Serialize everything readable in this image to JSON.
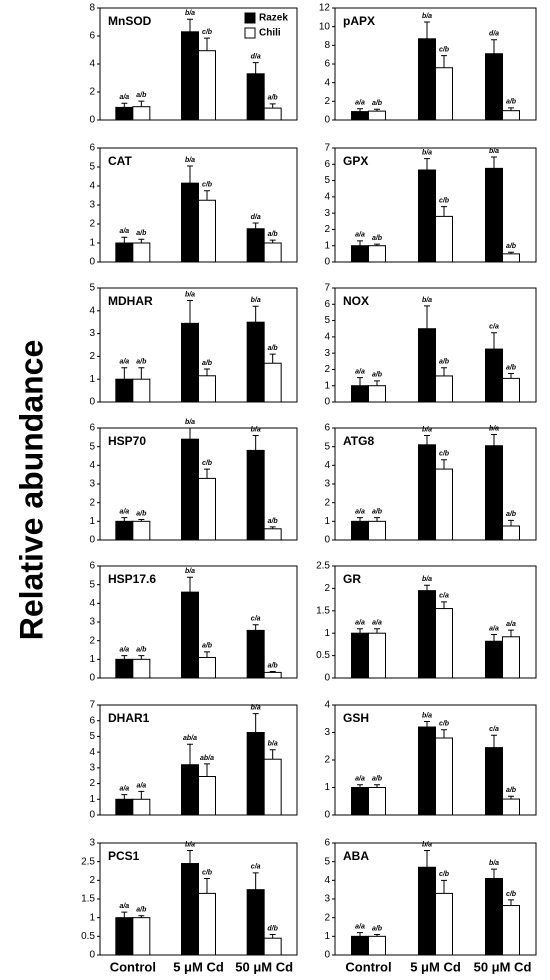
{
  "y_label": "Relative abundance",
  "chart_data": [
    {
      "type": "bar",
      "title": "MnSOD",
      "categories": [
        null,
        null,
        null
      ],
      "ylim": [
        0,
        8
      ],
      "yticks": [
        0,
        2,
        4,
        6,
        8
      ],
      "legend": "upper right",
      "series": [
        {
          "name": "Razek",
          "color": "#000000",
          "values": [
            0.9,
            6.3,
            3.3
          ],
          "errors": [
            0.3,
            0.9,
            0.8
          ],
          "labels": [
            "a/a",
            "b/a",
            "d/a"
          ]
        },
        {
          "name": "Chili",
          "color": "#ffffff",
          "values": [
            0.95,
            4.95,
            0.85
          ],
          "errors": [
            0.4,
            0.9,
            0.3
          ],
          "labels": [
            "a/b",
            "c/b",
            "a/b"
          ]
        }
      ]
    },
    {
      "type": "bar",
      "title": "pAPX",
      "categories": [
        null,
        null,
        null
      ],
      "ylim": [
        0,
        12
      ],
      "yticks": [
        0,
        2,
        4,
        6,
        8,
        10,
        12
      ],
      "series": [
        {
          "color": "#000000",
          "values": [
            0.9,
            8.7,
            7.1
          ],
          "errors": [
            0.3,
            1.8,
            1.5
          ],
          "labels": [
            "a/a",
            "b/a",
            "d/a"
          ]
        },
        {
          "color": "#ffffff",
          "values": [
            0.95,
            5.6,
            1.0
          ],
          "errors": [
            0.2,
            1.3,
            0.3
          ],
          "labels": [
            "a/b",
            "c/b",
            "a/b"
          ]
        }
      ]
    },
    {
      "type": "bar",
      "title": "CAT",
      "categories": [
        null,
        null,
        null
      ],
      "ylim": [
        0,
        6
      ],
      "yticks": [
        0,
        1,
        2,
        3,
        4,
        5,
        6
      ],
      "series": [
        {
          "color": "#000000",
          "values": [
            1.0,
            4.15,
            1.75
          ],
          "errors": [
            0.3,
            0.9,
            0.3
          ],
          "labels": [
            "a/a",
            "b/a",
            "d/a"
          ]
        },
        {
          "color": "#ffffff",
          "values": [
            1.0,
            3.25,
            1.0
          ],
          "errors": [
            0.2,
            0.5,
            0.15
          ],
          "labels": [
            "a/b",
            "c/b",
            "a/b"
          ]
        }
      ]
    },
    {
      "type": "bar",
      "title": "GPX",
      "categories": [
        null,
        null,
        null
      ],
      "ylim": [
        0,
        7
      ],
      "yticks": [
        0,
        1,
        2,
        3,
        4,
        5,
        6,
        7
      ],
      "series": [
        {
          "color": "#000000",
          "values": [
            1.0,
            5.65,
            5.75
          ],
          "errors": [
            0.3,
            0.7,
            0.7
          ],
          "labels": [
            "a/a",
            "b/a",
            "b/a"
          ]
        },
        {
          "color": "#ffffff",
          "values": [
            1.0,
            2.8,
            0.5
          ],
          "errors": [
            0.1,
            0.6,
            0.1
          ],
          "labels": [
            "a/b",
            "c/b",
            "a/b"
          ]
        }
      ]
    },
    {
      "type": "bar",
      "title": "MDHAR",
      "categories": [
        null,
        null,
        null
      ],
      "ylim": [
        0,
        5
      ],
      "yticks": [
        0,
        1,
        2,
        3,
        4,
        5
      ],
      "series": [
        {
          "color": "#000000",
          "values": [
            1.0,
            3.45,
            3.5
          ],
          "errors": [
            0.5,
            1.0,
            0.7
          ],
          "labels": [
            "a/a",
            "b/a",
            "b/a"
          ]
        },
        {
          "color": "#ffffff",
          "values": [
            1.0,
            1.15,
            1.7
          ],
          "errors": [
            0.5,
            0.3,
            0.4
          ],
          "labels": [
            "a/b",
            "a/b",
            "a/b"
          ]
        }
      ]
    },
    {
      "type": "bar",
      "title": "NOX",
      "categories": [
        null,
        null,
        null
      ],
      "ylim": [
        0,
        7
      ],
      "yticks": [
        0,
        1,
        2,
        3,
        4,
        5,
        6,
        7
      ],
      "series": [
        {
          "color": "#000000",
          "values": [
            1.0,
            4.5,
            3.25
          ],
          "errors": [
            0.5,
            1.4,
            1.0
          ],
          "labels": [
            "a/a",
            "b/a",
            "c/a"
          ]
        },
        {
          "color": "#ffffff",
          "values": [
            1.0,
            1.6,
            1.45
          ],
          "errors": [
            0.3,
            0.5,
            0.3
          ],
          "labels": [
            "a/b",
            "a/b",
            "a/b"
          ]
        }
      ]
    },
    {
      "type": "bar",
      "title": "HSP70",
      "categories": [
        null,
        null,
        null
      ],
      "ylim": [
        0,
        6
      ],
      "yticks": [
        0,
        1,
        2,
        3,
        4,
        5,
        6
      ],
      "series": [
        {
          "color": "#000000",
          "values": [
            1.0,
            5.4,
            4.8
          ],
          "errors": [
            0.2,
            0.6,
            0.8
          ],
          "labels": [
            "a/a",
            "b/a",
            "b/a"
          ]
        },
        {
          "color": "#ffffff",
          "values": [
            1.0,
            3.3,
            0.6
          ],
          "errors": [
            0.1,
            0.5,
            0.1
          ],
          "labels": [
            "a/b",
            "c/b",
            "a/b"
          ]
        }
      ]
    },
    {
      "type": "bar",
      "title": "ATG8",
      "categories": [
        null,
        null,
        null
      ],
      "ylim": [
        0,
        6
      ],
      "yticks": [
        0,
        1,
        2,
        3,
        4,
        5,
        6
      ],
      "series": [
        {
          "color": "#000000",
          "values": [
            1.0,
            5.1,
            5.05
          ],
          "errors": [
            0.2,
            0.5,
            0.6
          ],
          "labels": [
            "a/a",
            "b/a",
            "b/a"
          ]
        },
        {
          "color": "#ffffff",
          "values": [
            1.0,
            3.8,
            0.75
          ],
          "errors": [
            0.2,
            0.5,
            0.3
          ],
          "labels": [
            "a/b",
            "c/b",
            "a/b"
          ]
        }
      ]
    },
    {
      "type": "bar",
      "title": "HSP17.6",
      "categories": [
        null,
        null,
        null
      ],
      "ylim": [
        0,
        6
      ],
      "yticks": [
        0,
        1,
        2,
        3,
        4,
        5,
        6
      ],
      "series": [
        {
          "color": "#000000",
          "values": [
            1.0,
            4.6,
            2.55
          ],
          "errors": [
            0.2,
            0.8,
            0.3
          ],
          "labels": [
            "a/a",
            "b/a",
            "c/a"
          ]
        },
        {
          "color": "#ffffff",
          "values": [
            1.0,
            1.1,
            0.3
          ],
          "errors": [
            0.2,
            0.3,
            0.05
          ],
          "labels": [
            "a/b",
            "a/b",
            "a/b"
          ]
        }
      ]
    },
    {
      "type": "bar",
      "title": "GR",
      "categories": [
        null,
        null,
        null
      ],
      "ylim": [
        0,
        2.5
      ],
      "yticks": [
        0,
        0.5,
        1,
        1.5,
        2,
        2.5
      ],
      "series": [
        {
          "color": "#000000",
          "values": [
            1.0,
            1.95,
            0.82
          ],
          "errors": [
            0.1,
            0.12,
            0.15
          ],
          "labels": [
            "a/a",
            "b/a",
            "a/a"
          ]
        },
        {
          "color": "#ffffff",
          "values": [
            1.0,
            1.55,
            0.92
          ],
          "errors": [
            0.1,
            0.15,
            0.15
          ],
          "labels": [
            "a/a",
            "c/a",
            "a/a"
          ]
        }
      ]
    },
    {
      "type": "bar",
      "title": "DHAR1",
      "categories": [
        null,
        null,
        null
      ],
      "ylim": [
        0,
        7
      ],
      "yticks": [
        0,
        1,
        2,
        3,
        4,
        5,
        6,
        7
      ],
      "series": [
        {
          "color": "#000000",
          "values": [
            1.0,
            3.2,
            5.25
          ],
          "errors": [
            0.3,
            1.3,
            1.2
          ],
          "labels": [
            "a/a",
            "ab/a",
            "b/a"
          ]
        },
        {
          "color": "#ffffff",
          "values": [
            1.0,
            2.45,
            3.55
          ],
          "errors": [
            0.5,
            0.8,
            0.6
          ],
          "labels": [
            "a/a",
            "ab/a",
            "b/a"
          ]
        }
      ]
    },
    {
      "type": "bar",
      "title": "GSH",
      "categories": [
        null,
        null,
        null
      ],
      "ylim": [
        0,
        4
      ],
      "yticks": [
        0,
        1,
        2,
        3,
        4
      ],
      "series": [
        {
          "color": "#000000",
          "values": [
            1.0,
            3.2,
            2.45
          ],
          "errors": [
            0.1,
            0.2,
            0.45
          ],
          "labels": [
            "a/a",
            "b/a",
            "c/a"
          ]
        },
        {
          "color": "#ffffff",
          "values": [
            1.0,
            2.8,
            0.58
          ],
          "errors": [
            0.1,
            0.3,
            0.1
          ],
          "labels": [
            "a/b",
            "c/b",
            "a/b"
          ]
        }
      ]
    },
    {
      "type": "bar",
      "title": "PCS1",
      "categories": [
        "Control",
        "5 μM Cd",
        "50 μM Cd"
      ],
      "ylim": [
        0,
        3
      ],
      "yticks": [
        0,
        0.5,
        1,
        1.5,
        2,
        2.5,
        3
      ],
      "series": [
        {
          "color": "#000000",
          "values": [
            1.0,
            2.45,
            1.75
          ],
          "errors": [
            0.15,
            0.35,
            0.45
          ],
          "labels": [
            "a/a",
            "b/a",
            "c/a"
          ]
        },
        {
          "color": "#ffffff",
          "values": [
            1.0,
            1.65,
            0.45
          ],
          "errors": [
            0.05,
            0.4,
            0.1
          ],
          "labels": [
            "a/b",
            "c/b",
            "d/b"
          ]
        }
      ]
    },
    {
      "type": "bar",
      "title": "ABA",
      "categories": [
        "Control",
        "5 μM Cd",
        "50 μM Cd"
      ],
      "ylim": [
        0,
        6
      ],
      "yticks": [
        0,
        1,
        2,
        3,
        4,
        5,
        6
      ],
      "series": [
        {
          "color": "#000000",
          "values": [
            1.0,
            4.7,
            4.1
          ],
          "errors": [
            0.2,
            0.9,
            0.5
          ],
          "labels": [
            "a/a",
            "b/a",
            "b/a"
          ]
        },
        {
          "color": "#ffffff",
          "values": [
            1.0,
            3.3,
            2.65
          ],
          "errors": [
            0.1,
            0.7,
            0.3
          ],
          "labels": [
            "a/b",
            "c/b",
            "c/b"
          ]
        }
      ]
    }
  ]
}
